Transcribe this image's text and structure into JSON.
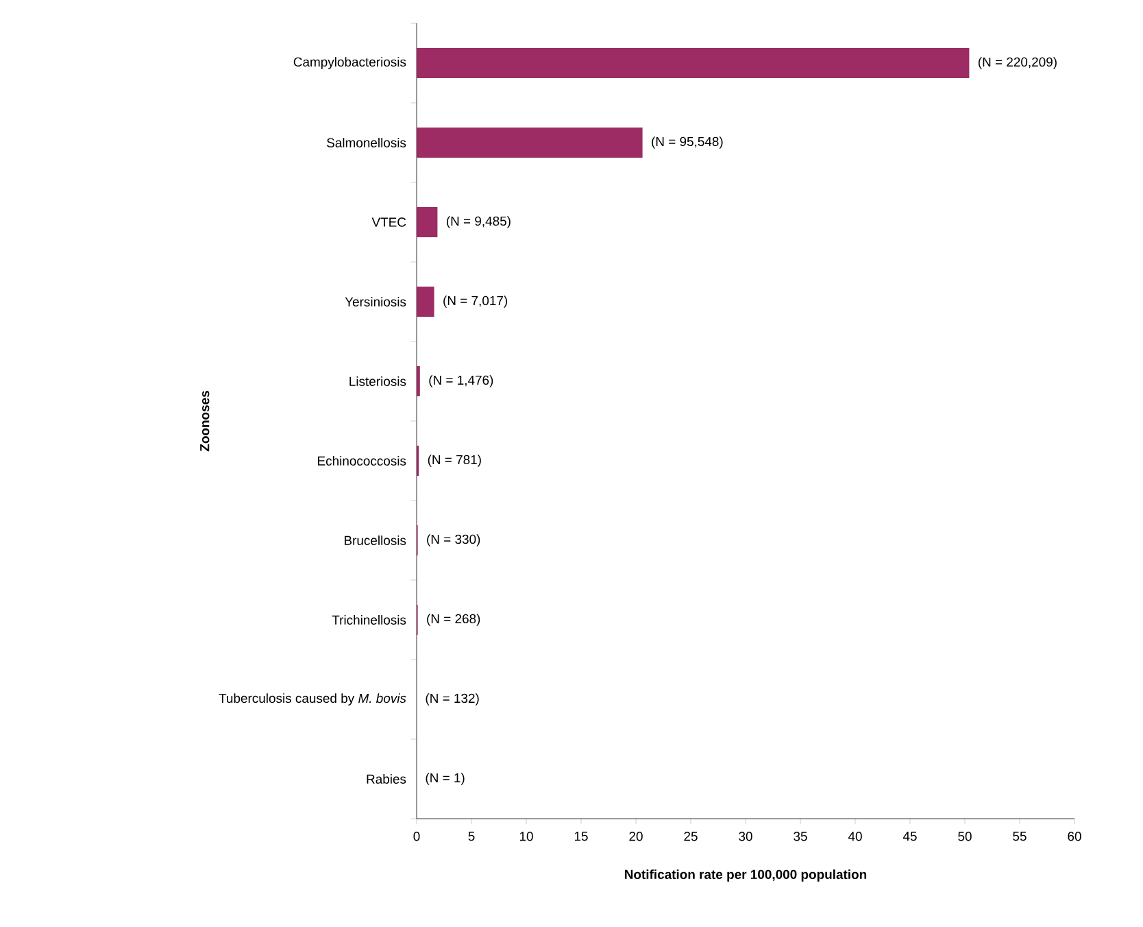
{
  "chart_data": {
    "type": "bar",
    "orientation": "horizontal",
    "xlabel": "Notification rate per 100,000 population",
    "ylabel": "Zoonoses",
    "categories": [
      "Campylobacteriosis",
      "Salmonellosis",
      "VTEC",
      "Yersiniosis",
      "Listeriosis",
      "Echinococcosis",
      "Brucellosis",
      "Trichinellosis",
      "Tuberculosis caused by *M. bovis*",
      "Rabies"
    ],
    "values": [
      50.4,
      20.6,
      1.9,
      1.6,
      0.3,
      0.2,
      0.1,
      0.1,
      0.0,
      0
    ],
    "annotations": [
      {
        "text": "(N = 220,209)",
        "x": 50.4,
        "y": "Campylobacteriosis"
      },
      {
        "text": "(N = 95,548)",
        "x": 20.6,
        "y": "Salmonellosis"
      },
      {
        "text": "(N = 9,485)",
        "x": 1.9,
        "y": "VTEC"
      },
      {
        "text": "(N = 7,017)",
        "x": 1.6,
        "y": "Yersiniosis"
      },
      {
        "text": "(N = 1,476)",
        "x": 0.3,
        "y": "Listeriosis"
      },
      {
        "text": "(N = 781)",
        "x": 0.2,
        "y": "Echinococcosis"
      },
      {
        "text": "(N = 330)",
        "x": 0.1,
        "y": "Brucellosis"
      },
      {
        "text": "(N = 268)",
        "x": 0.1,
        "y": "Trichinellosis"
      },
      {
        "text": "(N = 132)",
        "x": 0.0,
        "y": "Tuberculosis caused by *M. bovis*"
      },
      {
        "text": "(N = 1)",
        "x": 0,
        "y": "Rabies"
      }
    ],
    "color": "#9c2c63",
    "xlim": [
      0,
      60
    ],
    "xticks": [
      0,
      5,
      10,
      15,
      20,
      25,
      30,
      35,
      40,
      45,
      50,
      55,
      60
    ]
  }
}
